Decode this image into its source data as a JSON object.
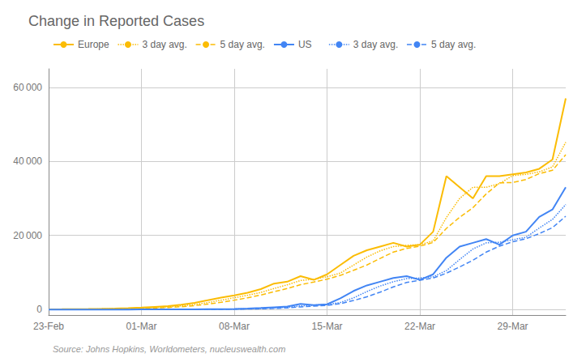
{
  "chart_data": {
    "type": "line",
    "title": "Change in Reported Cases",
    "annotation": "Source: Johns Hopkins, Worldometers, nucleuswealth.com",
    "categories": [
      "23-Feb",
      null,
      null,
      null,
      null,
      null,
      null,
      "01-Mar",
      null,
      null,
      null,
      null,
      null,
      null,
      "08-Mar",
      null,
      null,
      null,
      null,
      null,
      null,
      "15-Mar",
      null,
      null,
      null,
      null,
      null,
      null,
      "22-Mar",
      null,
      null,
      null,
      null,
      null,
      null,
      "29-Mar",
      null,
      null,
      null,
      null
    ],
    "series": [
      {
        "name": "Europe",
        "color": "#FBBC04",
        "line_style": "solid",
        "values": [
          50,
          60,
          80,
          120,
          180,
          250,
          350,
          500,
          700,
          900,
          1300,
          1800,
          2500,
          3200,
          3800,
          4500,
          5500,
          7000,
          7500,
          9000,
          8000,
          9500,
          12000,
          14500,
          16000,
          17000,
          18000,
          17000,
          17500,
          21000,
          36000,
          33000,
          30000,
          36000,
          36000,
          36500,
          37000,
          38000,
          40500,
          57000
        ]
      },
      {
        "name": "3 day avg.",
        "color": "#FBBC04",
        "line_style": "dotted",
        "values": [
          null,
          null,
          63.333333,
          86.666667,
          126.666667,
          183.333333,
          260,
          366.666667,
          516.666667,
          700,
          966.666667,
          1333.333333,
          1866.666667,
          2500,
          3166.666667,
          3833.333333,
          4600,
          5666.666667,
          6666.666667,
          7833.333333,
          8166.666667,
          8833.333333,
          9833.333333,
          12000,
          14166.666667,
          15833.333333,
          17000,
          17333.333333,
          17500,
          18500,
          24833.333333,
          30000,
          33000,
          33000,
          34000,
          36166.666667,
          36500,
          37166.666667,
          38500,
          45166.666667
        ]
      },
      {
        "name": "5 day avg.",
        "color": "#FBBC04",
        "line_style": "dashed",
        "values": [
          null,
          null,
          null,
          null,
          98,
          138,
          196,
          280,
          396,
          540,
          750,
          1040,
          1440,
          1940,
          2520,
          3160,
          3900,
          4800,
          5660,
          6700,
          7400,
          8200,
          9200,
          10600,
          12000,
          13800,
          15500,
          16500,
          17100,
          18100,
          21900,
          24900,
          27500,
          31200,
          34200,
          34300,
          35100,
          36700,
          37600,
          41800
        ]
      },
      {
        "name": "US",
        "color": "#4285F4",
        "line_style": "solid",
        "values": [
          0,
          0,
          0,
          0,
          0,
          2,
          2,
          5,
          8,
          15,
          20,
          30,
          80,
          100,
          150,
          250,
          400,
          600,
          800,
          1500,
          1200,
          1400,
          3000,
          5000,
          6500,
          7500,
          8500,
          9000,
          8000,
          9500,
          14000,
          17000,
          18000,
          19000,
          17500,
          20000,
          21000,
          25000,
          27000,
          33000
        ]
      },
      {
        "name": "3 day avg.",
        "color": "#4285F4",
        "line_style": "dotted",
        "values": [
          null,
          null,
          0,
          0,
          0,
          0.666667,
          1.333333,
          3,
          5,
          9.333333,
          14.333333,
          21.666667,
          43.333333,
          70,
          110,
          166.666667,
          266.666667,
          416.666667,
          600,
          966.666667,
          1166.666667,
          1366.666667,
          1866.666667,
          3133.333333,
          4833.333333,
          6333.333333,
          7500,
          8333.333333,
          8500,
          8833.333333,
          10500,
          13500,
          16333.333333,
          18000,
          18166.666667,
          18833.333333,
          19500,
          22000,
          24333.333333,
          28333.333333
        ]
      },
      {
        "name": "5 day avg.",
        "color": "#4285F4",
        "line_style": "dashed",
        "values": [
          null,
          null,
          null,
          null,
          0,
          0.4,
          0.8,
          1.8,
          3.4,
          6.4,
          10,
          15.6,
          30.6,
          49,
          76,
          122,
          196,
          300,
          440,
          710,
          900,
          1100,
          1580,
          2420,
          3420,
          4680,
          6100,
          7300,
          7900,
          8500,
          9800,
          11500,
          13300,
          15500,
          17100,
          18300,
          19100,
          20500,
          22100,
          25200
        ]
      }
    ],
    "ylim": [
      -1500,
      65000
    ],
    "yticks": [
      0,
      {
        "value": 20000,
        "label": "20 000"
      },
      {
        "value": 40000,
        "label": "40 000"
      },
      {
        "value": 60000,
        "label": "60 000"
      }
    ],
    "grid": true,
    "legend": "upper left"
  }
}
